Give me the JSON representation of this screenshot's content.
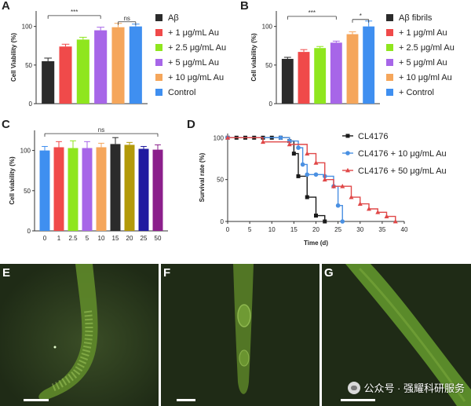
{
  "panels": {
    "A": "A",
    "B": "B",
    "C": "C",
    "D": "D",
    "E": "E",
    "F": "F",
    "G": "G"
  },
  "watermark": "公众号 · 强耀科研服务",
  "chart_data": [
    {
      "id": "A",
      "type": "bar",
      "ylabel": "Cell Viability (%)",
      "ylim": [
        0,
        120
      ],
      "yticks": [
        0,
        50,
        100
      ],
      "categories": [
        "Aβ",
        "+ 1 μg/mL Au",
        "+ 2.5 μg/mL Au",
        "+ 5 μg/mL Au",
        "+ 10 μg/mL Au",
        "Control"
      ],
      "values": [
        55,
        74,
        83,
        95,
        99,
        100
      ],
      "errors": [
        4,
        3,
        3,
        4,
        5,
        3
      ],
      "colors": [
        "#2b2b2b",
        "#f04a4a",
        "#8fe61e",
        "#a766e8",
        "#f5a65b",
        "#3f8ff0"
      ],
      "legend_position": "right",
      "sig": [
        {
          "label": "***",
          "from": 0,
          "to": 3,
          "level": 114
        },
        {
          "label": "ns",
          "from": 4,
          "to": 5,
          "level": 106
        }
      ]
    },
    {
      "id": "B",
      "type": "bar",
      "ylabel": "Cell viability (%)",
      "ylim": [
        0,
        120
      ],
      "yticks": [
        0,
        50,
        100
      ],
      "categories": [
        "Aβ fibrils",
        "+ 1 μg/ml Au",
        "+ 2.5 μg/ml Au",
        "+ 5 μg/ml Au",
        "+ 10 μg/ml Au",
        "+ Control"
      ],
      "values": [
        58,
        67,
        72,
        79,
        90,
        100
      ],
      "errors": [
        2,
        3,
        2,
        2,
        3,
        7
      ],
      "colors": [
        "#2b2b2b",
        "#f04a4a",
        "#8fe61e",
        "#a766e8",
        "#f5a65b",
        "#3f8ff0"
      ],
      "legend_position": "right",
      "sig": [
        {
          "label": "***",
          "from": 0,
          "to": 3,
          "level": 113
        },
        {
          "label": "*",
          "from": 4,
          "to": 5,
          "level": 109
        }
      ]
    },
    {
      "id": "C",
      "type": "bar",
      "ylabel": "Cell viability (%)",
      "ylim": [
        0,
        125
      ],
      "yticks": [
        0,
        50,
        100
      ],
      "categories": [
        "0",
        "1",
        "2.5",
        "5",
        "10",
        "15",
        "20",
        "25",
        "50"
      ],
      "values": [
        100,
        104,
        103,
        103,
        104,
        108,
        107,
        102,
        101
      ],
      "errors": [
        5,
        7,
        9,
        8,
        5,
        8,
        3,
        3,
        6
      ],
      "colors": [
        "#3f8ff0",
        "#f04a4a",
        "#8fe61e",
        "#a766e8",
        "#f5a65b",
        "#2b2b2b",
        "#b39a0a",
        "#1f1aa0",
        "#8b1f8b"
      ],
      "sig": [
        {
          "label": "ns",
          "from": 0,
          "to": 8,
          "level": 121
        }
      ]
    },
    {
      "id": "D",
      "type": "line",
      "xlabel": "Time (d)",
      "ylabel": "Survival rate (%)",
      "xlim": [
        0,
        40
      ],
      "ylim": [
        0,
        105
      ],
      "xticks": [
        0,
        5,
        10,
        15,
        20,
        25,
        30,
        35,
        40
      ],
      "yticks": [
        0,
        50,
        100
      ],
      "legend_position": "right",
      "series": [
        {
          "name": "CL4176",
          "color": "#1a1a1a",
          "marker": "square",
          "points": [
            [
              0,
              100
            ],
            [
              2,
              100
            ],
            [
              4,
              100
            ],
            [
              6,
              100
            ],
            [
              8,
              100
            ],
            [
              10,
              100
            ],
            [
              12,
              100
            ],
            [
              14,
              96
            ],
            [
              15,
              81
            ],
            [
              16,
              54
            ],
            [
              18,
              29
            ],
            [
              20,
              7
            ],
            [
              22,
              0
            ]
          ]
        },
        {
          "name": "CL4176 + 10 μg/mL Au",
          "color": "#4a90e2",
          "marker": "circle",
          "points": [
            [
              0,
              100
            ],
            [
              12,
              100
            ],
            [
              14,
              96
            ],
            [
              16,
              88
            ],
            [
              17,
              68
            ],
            [
              18,
              56
            ],
            [
              20,
              56
            ],
            [
              22,
              54
            ],
            [
              24,
              42
            ],
            [
              25,
              19
            ],
            [
              26,
              0
            ]
          ]
        },
        {
          "name": "CL4176 + 50 μg/mL Au",
          "color": "#e04848",
          "marker": "triangle",
          "points": [
            [
              0,
              100
            ],
            [
              8,
              95
            ],
            [
              14,
              92
            ],
            [
              18,
              81
            ],
            [
              20,
              70
            ],
            [
              22,
              50
            ],
            [
              24,
              42
            ],
            [
              26,
              42
            ],
            [
              28,
              29
            ],
            [
              30,
              21
            ],
            [
              32,
              15
            ],
            [
              34,
              11
            ],
            [
              36,
              6
            ],
            [
              38,
              0
            ]
          ]
        }
      ]
    }
  ]
}
